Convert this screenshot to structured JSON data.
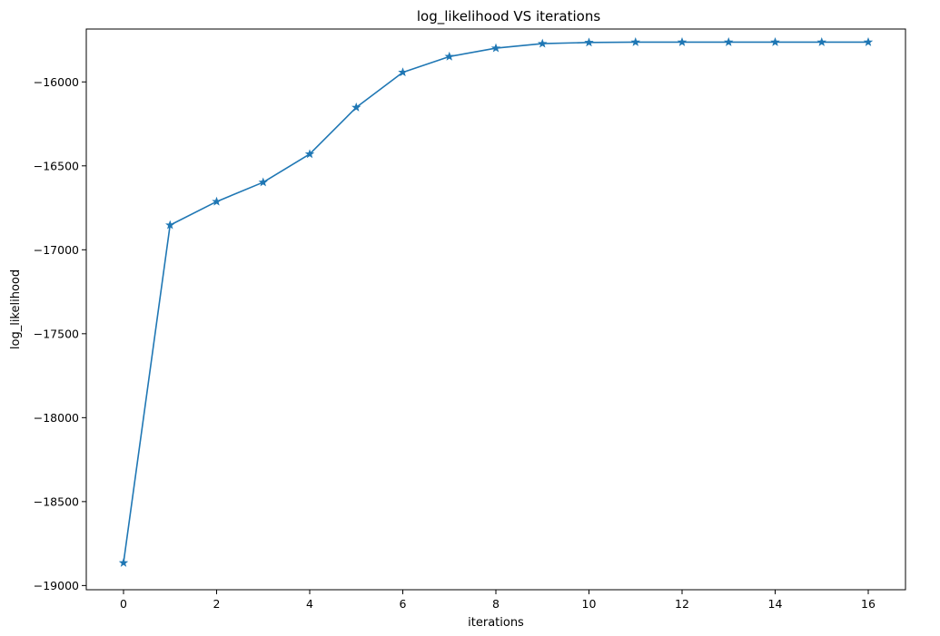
{
  "chart_data": {
    "type": "line",
    "title": "log_likelihood VS iterations",
    "xlabel": "iterations",
    "ylabel": "log_likelihood",
    "x": [
      0,
      1,
      2,
      3,
      4,
      5,
      6,
      7,
      8,
      9,
      10,
      11,
      12,
      13,
      14,
      15,
      16
    ],
    "series": [
      {
        "values": [
          -18865,
          -16853,
          -16713,
          -16598,
          -16430,
          -16152,
          -15943,
          -15849,
          -15799,
          -15772,
          -15765,
          -15763,
          -15763,
          -15763,
          -15763,
          -15763,
          -15763
        ],
        "color": "#1f77b4",
        "marker": "star"
      }
    ],
    "xlim": [
      -0.8,
      16.8
    ],
    "ylim": [
      -19025,
      -15685
    ],
    "xticks": [
      0,
      2,
      4,
      6,
      8,
      10,
      12,
      14,
      16
    ],
    "yticks": [
      -19000,
      -18500,
      -18000,
      -17500,
      -17000,
      -16500,
      -16000
    ],
    "xtick_labels": [
      "0",
      "2",
      "4",
      "6",
      "8",
      "10",
      "12",
      "14",
      "16"
    ],
    "ytick_labels": [
      "−19000",
      "−18500",
      "−18000",
      "−17500",
      "−17000",
      "−16500",
      "−16000"
    ],
    "grid": false,
    "legend": "none"
  }
}
